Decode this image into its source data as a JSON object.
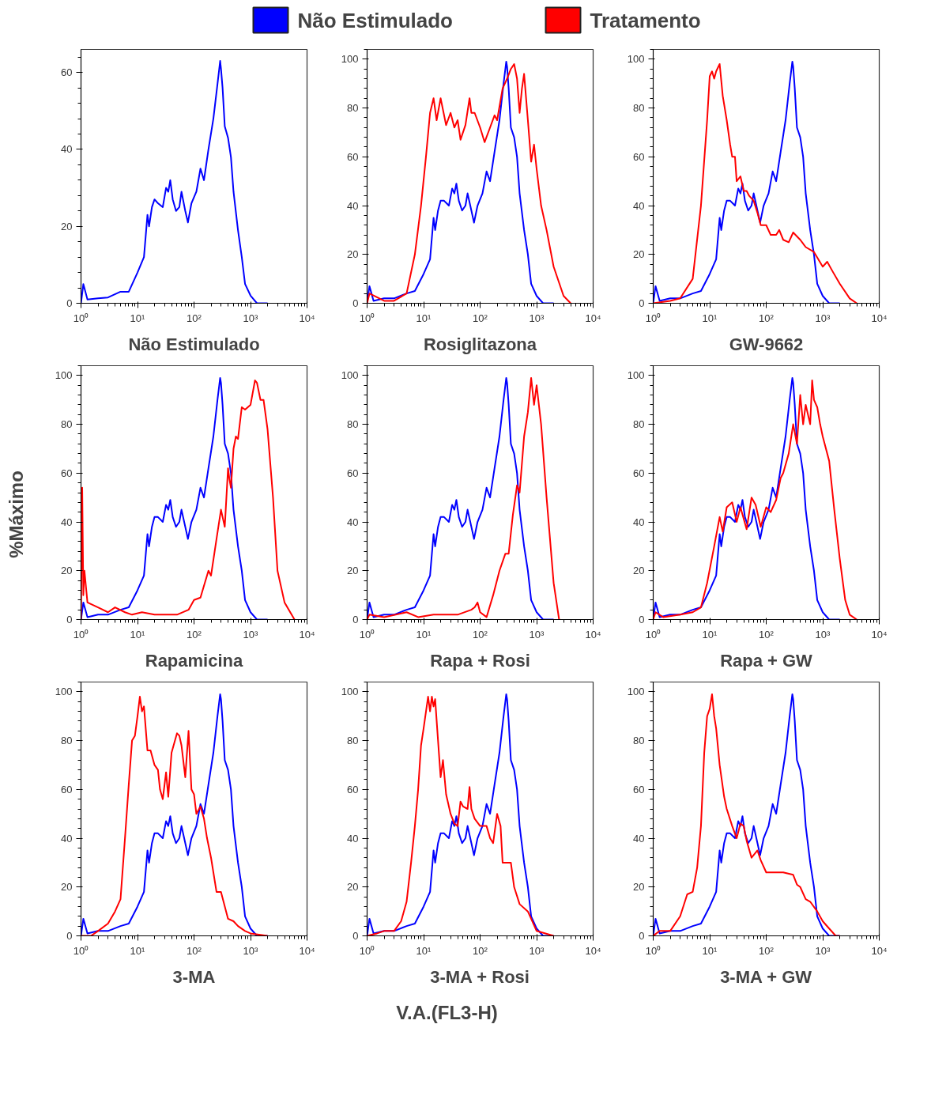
{
  "chart_data": [
    {
      "type": "line",
      "xlabel": "Não Estimulado",
      "log": "x",
      "xlim": [
        1,
        10000
      ],
      "ylim": [
        0,
        66
      ],
      "xticks": [
        {
          "value": 1,
          "label": "10⁰"
        },
        {
          "value": 10,
          "label": "10¹"
        },
        {
          "value": 100,
          "label": "10²"
        },
        {
          "value": 1000,
          "label": "10³"
        },
        {
          "value": 10000,
          "label": "10⁴"
        }
      ],
      "yticks": [
        0,
        20,
        40,
        60
      ],
      "grid": false,
      "line_style": "solid",
      "marker": "none",
      "series": [
        {
          "color": "#0000ff",
          "x": [
            1,
            1.1,
            1.3,
            2,
            3,
            5,
            7,
            10,
            13,
            15,
            16,
            18,
            20,
            23,
            28,
            32,
            35,
            38,
            42,
            48,
            55,
            60,
            70,
            78,
            90,
            110,
            130,
            150,
            180,
            220,
            260,
            290,
            300,
            320,
            350,
            400,
            450,
            500,
            600,
            700,
            800,
            1000,
            1300,
            2000
          ],
          "values": [
            0,
            5,
            1,
            1.3,
            1.5,
            3,
            3,
            8,
            12,
            23,
            20,
            25,
            27,
            26,
            25,
            30,
            29,
            32,
            27,
            24,
            25,
            29,
            24,
            21,
            26,
            29,
            35,
            32,
            40,
            48,
            57,
            63,
            61,
            56,
            46,
            43,
            38,
            29,
            19,
            12,
            5,
            2,
            0,
            0
          ]
        }
      ]
    },
    {
      "type": "line",
      "xlabel": "Rosiglitazona",
      "log": "x",
      "xlim": [
        1,
        10000
      ],
      "ylim": [
        0,
        104
      ],
      "xticks": [
        {
          "value": 1,
          "label": "10⁰"
        },
        {
          "value": 10,
          "label": "10¹"
        },
        {
          "value": 100,
          "label": "10²"
        },
        {
          "value": 1000,
          "label": "10³"
        },
        {
          "value": 10000,
          "label": "10⁴"
        }
      ],
      "yticks": [
        0,
        20,
        40,
        60,
        80,
        100
      ],
      "grid": false,
      "legend": "top",
      "line_style": "solid",
      "marker": "none",
      "series": [
        {
          "name": "Não Estimulado",
          "color": "#0000ff",
          "x": [
            1,
            1.1,
            1.3,
            2,
            3,
            5,
            7,
            10,
            13,
            15,
            16,
            18,
            20,
            23,
            28,
            32,
            35,
            38,
            42,
            48,
            55,
            60,
            70,
            78,
            90,
            110,
            130,
            150,
            180,
            220,
            260,
            290,
            300,
            320,
            350,
            400,
            450,
            500,
            600,
            700,
            800,
            1000,
            1300,
            2000
          ],
          "values": [
            0,
            7,
            1,
            2,
            2,
            4,
            5,
            12,
            18,
            35,
            30,
            38,
            42,
            42,
            40,
            47,
            45,
            49,
            42,
            38,
            40,
            45,
            38,
            33,
            40,
            45,
            54,
            50,
            62,
            75,
            90,
            99,
            97,
            88,
            72,
            68,
            60,
            45,
            30,
            20,
            8,
            3,
            0,
            0
          ]
        },
        {
          "name": "Tratamento",
          "color": "#ff0000",
          "x": [
            1,
            1.1,
            2,
            3,
            5,
            7,
            9,
            11,
            13,
            15,
            17,
            20,
            25,
            30,
            35,
            40,
            45,
            55,
            65,
            70,
            80,
            100,
            120,
            150,
            180,
            200,
            250,
            300,
            350,
            400,
            450,
            500,
            550,
            600,
            700,
            800,
            900,
            1000,
            1200,
            1500,
            2000,
            3000,
            4000
          ],
          "values": [
            0,
            4,
            1,
            1,
            4,
            20,
            40,
            60,
            78,
            84,
            75,
            84,
            73,
            78,
            72,
            75,
            67,
            73,
            84,
            78,
            78,
            72,
            66,
            72,
            77,
            75,
            88,
            92,
            96,
            98,
            92,
            78,
            88,
            94,
            75,
            58,
            65,
            55,
            40,
            30,
            15,
            3,
            0
          ]
        }
      ]
    },
    {
      "type": "line",
      "xlabel": "GW-9662",
      "log": "x",
      "xlim": [
        1,
        10000
      ],
      "ylim": [
        0,
        104
      ],
      "xticks": [
        {
          "value": 1,
          "label": "10⁰"
        },
        {
          "value": 10,
          "label": "10¹"
        },
        {
          "value": 100,
          "label": "10²"
        },
        {
          "value": 1000,
          "label": "10³"
        },
        {
          "value": 10000,
          "label": "10⁴"
        }
      ],
      "yticks": [
        0,
        20,
        40,
        60,
        80,
        100
      ],
      "grid": false,
      "line_style": "solid",
      "marker": "none",
      "series": [
        {
          "color": "#0000ff",
          "x": [
            1,
            1.1,
            1.3,
            2,
            3,
            5,
            7,
            10,
            13,
            15,
            16,
            18,
            20,
            23,
            28,
            32,
            35,
            38,
            42,
            48,
            55,
            60,
            70,
            78,
            90,
            110,
            130,
            150,
            180,
            220,
            260,
            290,
            300,
            320,
            350,
            400,
            450,
            500,
            600,
            700,
            800,
            1000,
            1300,
            2000
          ],
          "values": [
            0,
            7,
            1,
            2,
            2,
            4,
            5,
            12,
            18,
            35,
            30,
            38,
            42,
            42,
            40,
            47,
            45,
            49,
            42,
            38,
            40,
            45,
            38,
            33,
            40,
            45,
            54,
            50,
            62,
            75,
            90,
            99,
            97,
            88,
            72,
            68,
            60,
            45,
            30,
            20,
            8,
            3,
            0,
            0
          ]
        },
        {
          "color": "#ff0000",
          "x": [
            1,
            2,
            3,
            5,
            7,
            9,
            10,
            11,
            12,
            13,
            15,
            17,
            20,
            23,
            25,
            28,
            30,
            35,
            40,
            45,
            50,
            60,
            70,
            80,
            100,
            120,
            150,
            170,
            200,
            250,
            300,
            400,
            500,
            700,
            1000,
            1200,
            1500,
            2000,
            3000,
            4000
          ],
          "values": [
            0,
            1,
            2,
            10,
            40,
            75,
            93,
            95,
            92,
            95,
            98,
            85,
            75,
            65,
            60,
            60,
            50,
            52,
            46,
            46,
            44,
            42,
            37,
            32,
            32,
            28,
            28,
            30,
            26,
            25,
            29,
            26,
            23,
            21,
            15,
            17,
            13,
            8,
            2,
            0
          ]
        }
      ]
    },
    {
      "type": "line",
      "xlabel": "Rapamicina",
      "ylabel": "%Máximo",
      "log": "x",
      "xlim": [
        1,
        10000
      ],
      "ylim": [
        0,
        104
      ],
      "xticks": [
        {
          "value": 1,
          "label": "10⁰"
        },
        {
          "value": 10,
          "label": "10¹"
        },
        {
          "value": 100,
          "label": "10²"
        },
        {
          "value": 1000,
          "label": "10³"
        },
        {
          "value": 10000,
          "label": "10⁴"
        }
      ],
      "yticks": [
        0,
        20,
        40,
        60,
        80,
        100
      ],
      "grid": false,
      "line_style": "solid",
      "marker": "none",
      "series": [
        {
          "color": "#0000ff",
          "x": [
            1,
            1.1,
            1.3,
            2,
            3,
            5,
            7,
            10,
            13,
            15,
            16,
            18,
            20,
            23,
            28,
            32,
            35,
            38,
            42,
            48,
            55,
            60,
            70,
            78,
            90,
            110,
            130,
            150,
            180,
            220,
            260,
            290,
            300,
            320,
            350,
            400,
            450,
            500,
            600,
            700,
            800,
            1000,
            1300,
            2000
          ],
          "values": [
            0,
            7,
            1,
            2,
            2,
            4,
            5,
            12,
            18,
            35,
            30,
            38,
            42,
            42,
            40,
            47,
            45,
            49,
            42,
            38,
            40,
            45,
            38,
            33,
            40,
            45,
            54,
            50,
            62,
            75,
            90,
            99,
            97,
            88,
            72,
            68,
            60,
            45,
            30,
            20,
            8,
            3,
            0,
            0
          ]
        },
        {
          "color": "#ff0000",
          "x": [
            1,
            1.05,
            1.1,
            1.15,
            1.3,
            2,
            3,
            4,
            6,
            8,
            12,
            20,
            50,
            80,
            100,
            130,
            180,
            200,
            250,
            300,
            350,
            400,
            420,
            450,
            500,
            550,
            600,
            700,
            800,
            1000,
            1200,
            1300,
            1500,
            1700,
            2000,
            2500,
            3000,
            4000,
            6000
          ],
          "values": [
            0,
            54,
            10,
            20,
            7,
            5,
            3,
            5,
            3,
            2,
            3,
            2,
            2,
            4,
            8,
            9,
            20,
            18,
            33,
            45,
            38,
            62,
            58,
            54,
            70,
            75,
            74,
            87,
            86,
            88,
            98,
            97,
            90,
            90,
            78,
            50,
            20,
            7,
            0
          ]
        }
      ]
    },
    {
      "type": "line",
      "xlabel": "Rapa + Rosi",
      "log": "x",
      "xlim": [
        1,
        10000
      ],
      "ylim": [
        0,
        104
      ],
      "xticks": [
        {
          "value": 1,
          "label": "10⁰"
        },
        {
          "value": 10,
          "label": "10¹"
        },
        {
          "value": 100,
          "label": "10²"
        },
        {
          "value": 1000,
          "label": "10³"
        },
        {
          "value": 10000,
          "label": "10⁴"
        }
      ],
      "yticks": [
        0,
        20,
        40,
        60,
        80,
        100
      ],
      "grid": false,
      "line_style": "solid",
      "marker": "none",
      "series": [
        {
          "color": "#0000ff",
          "x": [
            1,
            1.1,
            1.3,
            2,
            3,
            5,
            7,
            10,
            13,
            15,
            16,
            18,
            20,
            23,
            28,
            32,
            35,
            38,
            42,
            48,
            55,
            60,
            70,
            78,
            90,
            110,
            130,
            150,
            180,
            220,
            260,
            290,
            300,
            320,
            350,
            400,
            450,
            500,
            600,
            700,
            800,
            1000,
            1300,
            2000
          ],
          "values": [
            0,
            7,
            1,
            2,
            2,
            4,
            5,
            12,
            18,
            35,
            30,
            38,
            42,
            42,
            40,
            47,
            45,
            49,
            42,
            38,
            40,
            45,
            38,
            33,
            40,
            45,
            54,
            50,
            62,
            75,
            90,
            99,
            97,
            88,
            72,
            68,
            60,
            45,
            30,
            20,
            8,
            3,
            0,
            0
          ]
        },
        {
          "color": "#ff0000",
          "x": [
            1,
            1.1,
            2,
            5,
            8,
            15,
            40,
            70,
            80,
            90,
            100,
            130,
            170,
            220,
            280,
            320,
            380,
            420,
            450,
            500,
            600,
            700,
            800,
            900,
            1000,
            1200,
            1500,
            2000,
            2500
          ],
          "values": [
            0,
            2,
            1,
            3,
            1,
            2,
            2,
            4,
            5,
            7,
            3,
            1,
            10,
            20,
            27,
            27,
            43,
            50,
            55,
            52,
            75,
            85,
            99,
            88,
            96,
            80,
            50,
            15,
            0
          ]
        }
      ]
    },
    {
      "type": "line",
      "xlabel": "Rapa + GW",
      "log": "x",
      "xlim": [
        1,
        10000
      ],
      "ylim": [
        0,
        104
      ],
      "xticks": [
        {
          "value": 1,
          "label": "10⁰"
        },
        {
          "value": 10,
          "label": "10¹"
        },
        {
          "value": 100,
          "label": "10²"
        },
        {
          "value": 1000,
          "label": "10³"
        },
        {
          "value": 10000,
          "label": "10⁴"
        }
      ],
      "yticks": [
        0,
        20,
        40,
        60,
        80,
        100
      ],
      "grid": false,
      "line_style": "solid",
      "marker": "none",
      "series": [
        {
          "color": "#0000ff",
          "x": [
            1,
            1.1,
            1.3,
            2,
            3,
            5,
            7,
            10,
            13,
            15,
            16,
            18,
            20,
            23,
            28,
            32,
            35,
            38,
            42,
            48,
            55,
            60,
            70,
            78,
            90,
            110,
            130,
            150,
            180,
            220,
            260,
            290,
            300,
            320,
            350,
            400,
            450,
            500,
            600,
            700,
            800,
            1000,
            1300,
            2000
          ],
          "values": [
            0,
            7,
            1,
            2,
            2,
            4,
            5,
            12,
            18,
            35,
            30,
            38,
            42,
            42,
            40,
            47,
            45,
            49,
            42,
            38,
            40,
            45,
            38,
            33,
            40,
            45,
            54,
            50,
            62,
            75,
            90,
            99,
            97,
            88,
            72,
            68,
            60,
            45,
            30,
            20,
            8,
            3,
            0,
            0
          ]
        },
        {
          "color": "#ff0000",
          "x": [
            1,
            1.1,
            1.5,
            3,
            5,
            7,
            9,
            12,
            15,
            17,
            20,
            25,
            30,
            35,
            45,
            55,
            65,
            80,
            100,
            120,
            150,
            180,
            200,
            250,
            300,
            350,
            400,
            450,
            500,
            600,
            650,
            700,
            800,
            900,
            1000,
            1300,
            1600,
            2000,
            2500,
            3000,
            4000
          ],
          "values": [
            0,
            3,
            1,
            2,
            3,
            5,
            15,
            30,
            42,
            36,
            46,
            48,
            40,
            46,
            37,
            50,
            47,
            38,
            46,
            44,
            49,
            58,
            60,
            68,
            80,
            72,
            92,
            80,
            88,
            80,
            98,
            90,
            87,
            80,
            75,
            65,
            45,
            25,
            8,
            2,
            0
          ]
        }
      ]
    },
    {
      "type": "line",
      "xlabel": "3-MA",
      "log": "x",
      "xlim": [
        1,
        10000
      ],
      "ylim": [
        0,
        104
      ],
      "xticks": [
        {
          "value": 1,
          "label": "10⁰"
        },
        {
          "value": 10,
          "label": "10¹"
        },
        {
          "value": 100,
          "label": "10²"
        },
        {
          "value": 1000,
          "label": "10³"
        },
        {
          "value": 10000,
          "label": "10⁴"
        }
      ],
      "yticks": [
        0,
        20,
        40,
        60,
        80,
        100
      ],
      "grid": false,
      "line_style": "solid",
      "marker": "none",
      "series": [
        {
          "color": "#0000ff",
          "x": [
            1,
            1.1,
            1.3,
            2,
            3,
            5,
            7,
            10,
            13,
            15,
            16,
            18,
            20,
            23,
            28,
            32,
            35,
            38,
            42,
            48,
            55,
            60,
            70,
            78,
            90,
            110,
            130,
            150,
            180,
            220,
            260,
            290,
            300,
            320,
            350,
            400,
            450,
            500,
            600,
            700,
            800,
            1000,
            1300,
            2000
          ],
          "values": [
            0,
            7,
            1,
            2,
            2,
            4,
            5,
            12,
            18,
            35,
            30,
            38,
            42,
            42,
            40,
            47,
            45,
            49,
            42,
            38,
            40,
            45,
            38,
            33,
            40,
            45,
            54,
            50,
            62,
            75,
            90,
            99,
            97,
            88,
            72,
            68,
            60,
            45,
            30,
            20,
            8,
            3,
            0,
            0
          ]
        },
        {
          "color": "#ff0000",
          "x": [
            1,
            1.5,
            2,
            3,
            4,
            5,
            6,
            7,
            8,
            9,
            10,
            11,
            12,
            13,
            15,
            17,
            20,
            23,
            25,
            28,
            32,
            35,
            40,
            50,
            55,
            60,
            70,
            80,
            90,
            100,
            110,
            130,
            150,
            170,
            200,
            250,
            300,
            400,
            500,
            600,
            800,
            1000,
            2000
          ],
          "values": [
            0,
            0,
            2,
            5,
            10,
            15,
            40,
            62,
            80,
            82,
            90,
            98,
            92,
            94,
            76,
            76,
            70,
            68,
            60,
            56,
            67,
            57,
            75,
            83,
            82,
            78,
            65,
            84,
            60,
            58,
            50,
            53,
            48,
            40,
            32,
            18,
            18,
            7,
            6,
            4,
            2,
            1,
            0
          ]
        }
      ]
    },
    {
      "type": "line",
      "xlabel": "3-MA + Rosi",
      "annotations": [
        "V.A.(FL3-H)"
      ],
      "log": "x",
      "xlim": [
        1,
        10000
      ],
      "ylim": [
        0,
        104
      ],
      "xticks": [
        {
          "value": 1,
          "label": "10⁰"
        },
        {
          "value": 10,
          "label": "10¹"
        },
        {
          "value": 100,
          "label": "10²"
        },
        {
          "value": 1000,
          "label": "10³"
        },
        {
          "value": 10000,
          "label": "10⁴"
        }
      ],
      "yticks": [
        0,
        20,
        40,
        60,
        80,
        100
      ],
      "grid": false,
      "line_style": "solid",
      "marker": "none",
      "series": [
        {
          "color": "#0000ff",
          "x": [
            1,
            1.1,
            1.3,
            2,
            3,
            5,
            7,
            10,
            13,
            15,
            16,
            18,
            20,
            23,
            28,
            32,
            35,
            38,
            42,
            48,
            55,
            60,
            70,
            78,
            90,
            110,
            130,
            150,
            180,
            220,
            260,
            290,
            300,
            320,
            350,
            400,
            450,
            500,
            600,
            700,
            800,
            1000,
            1300,
            2000
          ],
          "values": [
            0,
            7,
            1,
            2,
            2,
            4,
            5,
            12,
            18,
            35,
            30,
            38,
            42,
            42,
            40,
            47,
            45,
            49,
            42,
            38,
            40,
            45,
            38,
            33,
            40,
            45,
            54,
            50,
            62,
            75,
            90,
            99,
            97,
            88,
            72,
            68,
            60,
            45,
            30,
            20,
            8,
            3,
            0,
            0
          ]
        },
        {
          "color": "#ff0000",
          "x": [
            1,
            1.5,
            2,
            3,
            4,
            5,
            6,
            7,
            8,
            9,
            10,
            12,
            13,
            14,
            15,
            16,
            18,
            20,
            22,
            25,
            30,
            35,
            40,
            45,
            50,
            60,
            65,
            70,
            80,
            100,
            130,
            150,
            170,
            200,
            230,
            250,
            300,
            350,
            400,
            500,
            700,
            1000,
            2000
          ],
          "values": [
            0,
            1,
            2,
            2,
            6,
            14,
            30,
            45,
            60,
            78,
            85,
            98,
            92,
            98,
            94,
            97,
            80,
            65,
            72,
            58,
            50,
            46,
            45,
            55,
            53,
            52,
            61,
            52,
            48,
            45,
            45,
            40,
            38,
            50,
            45,
            30,
            30,
            30,
            20,
            13,
            10,
            2,
            0
          ]
        }
      ]
    },
    {
      "type": "line",
      "xlabel": "3-MA + GW",
      "log": "x",
      "xlim": [
        1,
        10000
      ],
      "ylim": [
        0,
        104
      ],
      "xticks": [
        {
          "value": 1,
          "label": "10⁰"
        },
        {
          "value": 10,
          "label": "10¹"
        },
        {
          "value": 100,
          "label": "10²"
        },
        {
          "value": 1000,
          "label": "10³"
        },
        {
          "value": 10000,
          "label": "10⁴"
        }
      ],
      "yticks": [
        0,
        20,
        40,
        60,
        80,
        100
      ],
      "grid": false,
      "line_style": "solid",
      "marker": "none",
      "series": [
        {
          "color": "#0000ff",
          "x": [
            1,
            1.1,
            1.3,
            2,
            3,
            5,
            7,
            10,
            13,
            15,
            16,
            18,
            20,
            23,
            28,
            32,
            35,
            38,
            42,
            48,
            55,
            60,
            70,
            78,
            90,
            110,
            130,
            150,
            180,
            220,
            260,
            290,
            300,
            320,
            350,
            400,
            450,
            500,
            600,
            700,
            800,
            1000,
            1300,
            2000
          ],
          "values": [
            0,
            7,
            1,
            2,
            2,
            4,
            5,
            12,
            18,
            35,
            30,
            38,
            42,
            42,
            40,
            47,
            45,
            49,
            42,
            38,
            40,
            45,
            38,
            33,
            40,
            45,
            54,
            50,
            62,
            75,
            90,
            99,
            97,
            88,
            72,
            68,
            60,
            45,
            30,
            20,
            8,
            3,
            0,
            0
          ]
        },
        {
          "color": "#ff0000",
          "x": [
            1,
            1.3,
            2,
            3,
            4,
            5,
            6,
            7,
            8,
            9,
            10,
            11,
            12,
            13,
            15,
            18,
            20,
            25,
            30,
            35,
            40,
            45,
            55,
            70,
            80,
            100,
            120,
            200,
            300,
            350,
            400,
            500,
            600,
            800,
            1000,
            1300,
            1700,
            2000
          ],
          "values": [
            0,
            2,
            2,
            8,
            17,
            18,
            28,
            45,
            75,
            90,
            93,
            99,
            90,
            85,
            70,
            57,
            52,
            45,
            40,
            46,
            45,
            39,
            32,
            35,
            31,
            26,
            26,
            26,
            25,
            21,
            20,
            15,
            14,
            10,
            6,
            3,
            0,
            0
          ]
        }
      ]
    }
  ]
}
